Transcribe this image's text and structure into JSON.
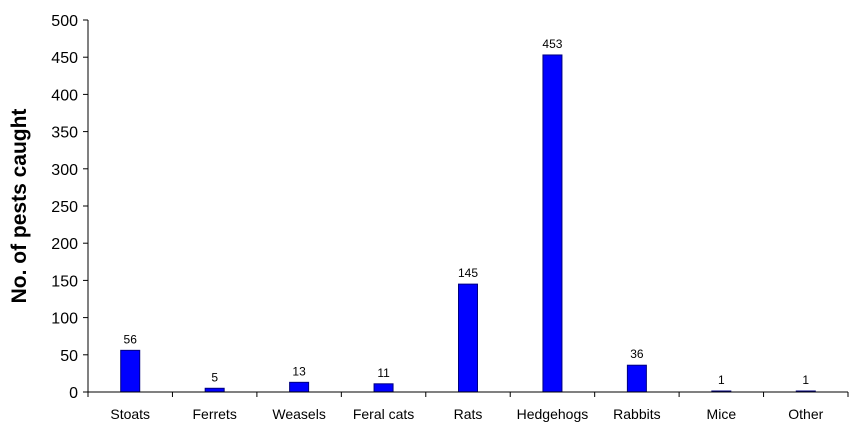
{
  "chart_data": {
    "type": "bar",
    "title": "",
    "xlabel": "",
    "ylabel": "No. of pests caught",
    "categories": [
      "Stoats",
      "Ferrets",
      "Weasels",
      "Feral cats",
      "Rats",
      "Hedgehogs",
      "Rabbits",
      "Mice",
      "Other"
    ],
    "values": [
      56,
      5,
      13,
      11,
      145,
      453,
      36,
      1,
      1
    ],
    "data_labels": [
      "56",
      "5",
      "13",
      "11",
      "145",
      "453",
      "36",
      "1",
      "1"
    ],
    "yticks": [
      "0",
      "50",
      "100",
      "150",
      "200",
      "250",
      "300",
      "350",
      "400",
      "450",
      "500"
    ],
    "ylim": [
      0,
      500
    ],
    "grid": false,
    "legend": "none",
    "bar_color": "#0000FF",
    "bar_edge_color": "#000080"
  }
}
